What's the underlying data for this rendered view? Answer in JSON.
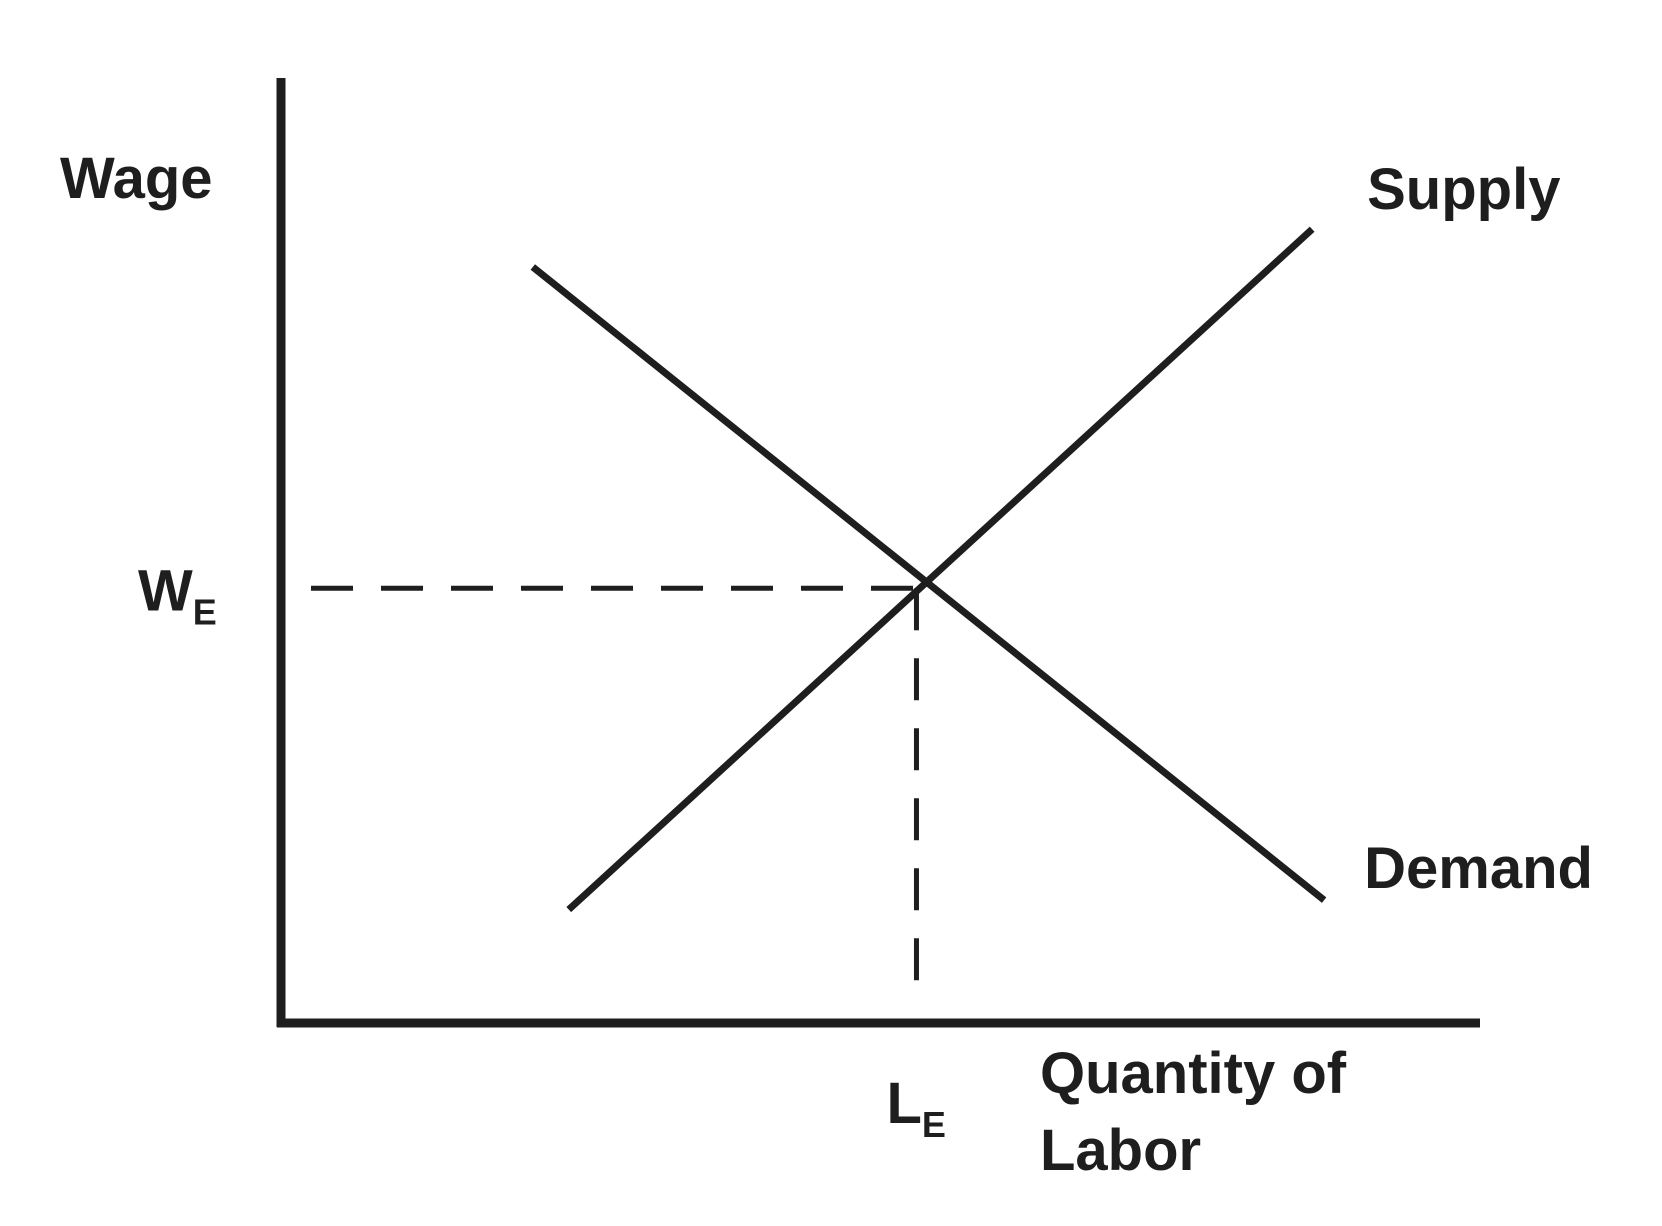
{
  "chart_data": {
    "type": "line",
    "ylabel": "Wage",
    "xlabel": [
      "Quantity of",
      "Labor"
    ],
    "series": [
      {
        "name": "Supply",
        "points": [
          [
            0.24,
            0.12
          ],
          [
            0.86,
            0.84
          ]
        ]
      },
      {
        "name": "Demand",
        "points": [
          [
            0.21,
            0.8
          ],
          [
            0.87,
            0.13
          ]
        ]
      }
    ],
    "equilibrium": {
      "x": 0.53,
      "y": 0.46,
      "x_label": {
        "main": "L",
        "sub": "E"
      },
      "y_label": {
        "main": "W",
        "sub": "E"
      }
    },
    "xlim": [
      0,
      1
    ],
    "ylim": [
      0,
      1
    ],
    "ticks": "none",
    "grid": false,
    "color": "#1e1e1e"
  }
}
